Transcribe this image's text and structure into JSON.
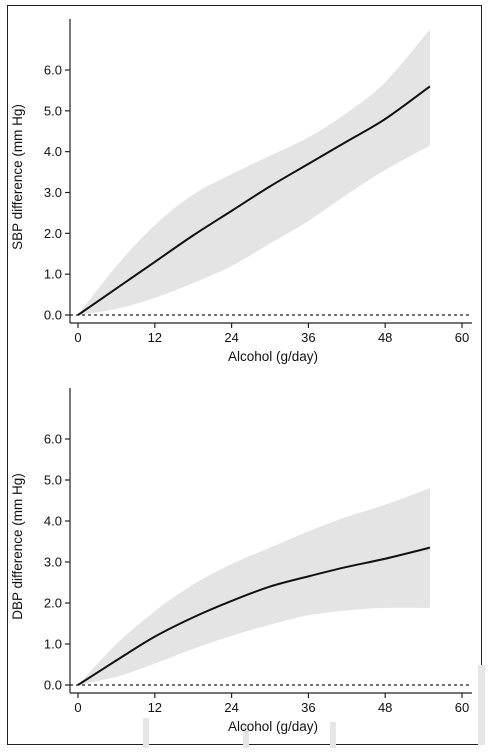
{
  "chart_data": [
    {
      "type": "line",
      "xlabel": "Alcohol (g/day)",
      "ylabel": "SBP difference (mm Hg)",
      "xlim": [
        0,
        60
      ],
      "ylim": [
        0,
        6.0
      ],
      "xticks": [
        "0",
        "12",
        "24",
        "36",
        "48",
        "60"
      ],
      "yticks": [
        "0.0",
        "1.0",
        "2.0",
        "3.0",
        "4.0",
        "5.0",
        "6.0"
      ],
      "reference_line": 0,
      "series": [
        {
          "x": [
            0,
            6,
            12,
            18,
            24,
            30,
            36,
            42,
            48,
            55
          ],
          "y": [
            0.0,
            0.65,
            1.3,
            1.95,
            2.55,
            3.15,
            3.7,
            4.25,
            4.8,
            5.6
          ],
          "lower": [
            0.0,
            0.15,
            0.42,
            0.78,
            1.2,
            1.75,
            2.3,
            2.95,
            3.55,
            4.15
          ],
          "upper": [
            0.0,
            1.2,
            2.2,
            2.95,
            3.45,
            3.9,
            4.35,
            4.95,
            5.7,
            7.0
          ]
        }
      ]
    },
    {
      "type": "line",
      "xlabel": "Alcohol (g/day)",
      "ylabel": "DBP difference (mm Hg)",
      "xlim": [
        0,
        60
      ],
      "ylim": [
        0,
        6.0
      ],
      "xticks": [
        "0",
        "12",
        "24",
        "36",
        "48",
        "60"
      ],
      "yticks": [
        "0.0",
        "1.0",
        "2.0",
        "3.0",
        "4.0",
        "5.0",
        "6.0"
      ],
      "reference_line": 0,
      "series": [
        {
          "x": [
            0,
            6,
            12,
            18,
            24,
            30,
            36,
            42,
            48,
            55
          ],
          "y": [
            0.0,
            0.6,
            1.18,
            1.65,
            2.05,
            2.4,
            2.65,
            2.88,
            3.08,
            3.35
          ],
          "lower": [
            0.0,
            0.2,
            0.52,
            0.88,
            1.2,
            1.47,
            1.7,
            1.82,
            1.88,
            1.88
          ],
          "upper": [
            0.0,
            1.0,
            1.8,
            2.45,
            2.95,
            3.35,
            3.75,
            4.1,
            4.4,
            4.8
          ]
        }
      ]
    }
  ],
  "colors": {
    "line": "#111111",
    "ci_band": "#e4e4e4",
    "axis": "#222222",
    "watermark": "#e2e2e2"
  }
}
